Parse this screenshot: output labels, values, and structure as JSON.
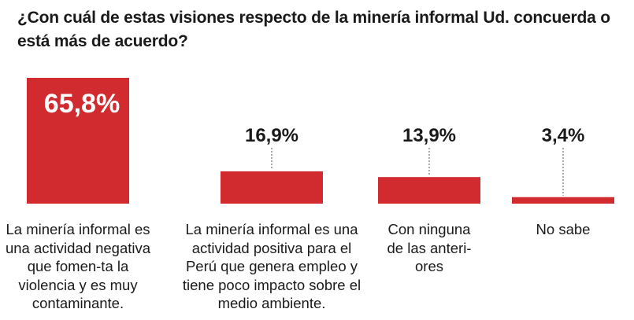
{
  "chart_data": {
    "type": "bar",
    "title": "¿Con cuál de estas visiones respecto de la minería informal Ud. concuerda o está más de acuerdo?",
    "categories": [
      "La minería informal es una actividad negativa que fomen-ta la violencia y es muy contaminante.",
      "La minería informal es una actividad positiva para el Perú que genera empleo y tiene poco impacto sobre el medio ambiente.",
      "Con ninguna de las anteri-ores",
      "No sabe"
    ],
    "values": [
      65.8,
      16.9,
      13.9,
      3.4
    ],
    "data_labels": [
      "65,8%",
      "16,9%",
      "13,9%",
      "3,4%"
    ],
    "unit": "%",
    "bar_color": "#d12a2f",
    "label_inside_color": "#ffffff",
    "ylim": [
      0,
      65.8
    ],
    "grid": false,
    "legend": "none"
  }
}
